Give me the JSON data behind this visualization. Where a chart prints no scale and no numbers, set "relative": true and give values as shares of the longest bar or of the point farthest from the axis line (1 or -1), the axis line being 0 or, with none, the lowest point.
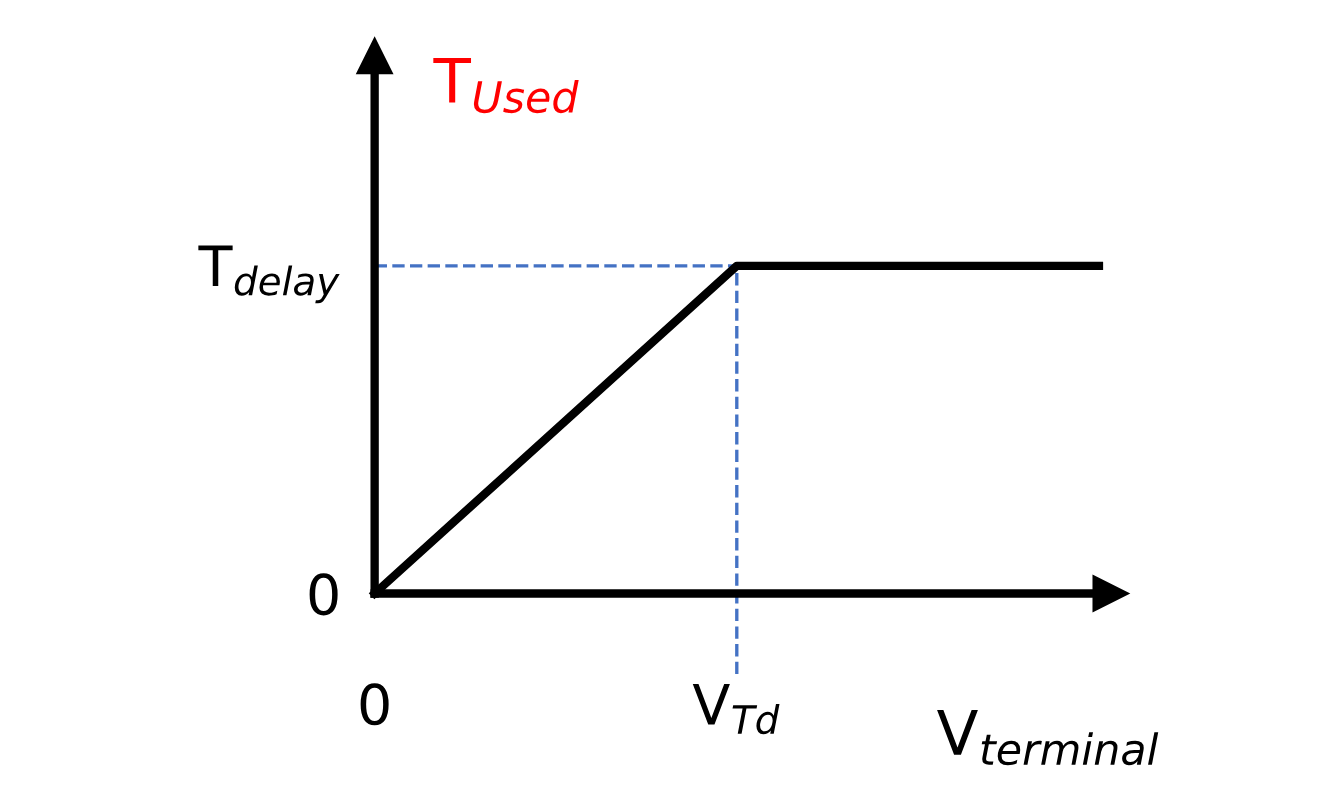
{
  "chart_data": {
    "type": "line",
    "relative": true,
    "ylabel": "T$_{Used}$",
    "xlabel": "V$_{terminal}$",
    "categories": [
      "0",
      "V$_{Td}$",
      null
    ],
    "series": [
      {
        "color": "#000000",
        "values": [
          0,
          1,
          1
        ]
      }
    ],
    "ref_lines": [
      {
        "axis": "y",
        "value": 1,
        "label": "T$_{delay}$",
        "color": "#4472c4",
        "line_style": "dashed"
      },
      {
        "axis": "x",
        "value": "V$_{Td}$",
        "color": "#4472c4",
        "line_style": "dashed"
      }
    ],
    "annotations": [
      "0"
    ],
    "legend": false,
    "marker": "none",
    "line_style": "solid"
  }
}
